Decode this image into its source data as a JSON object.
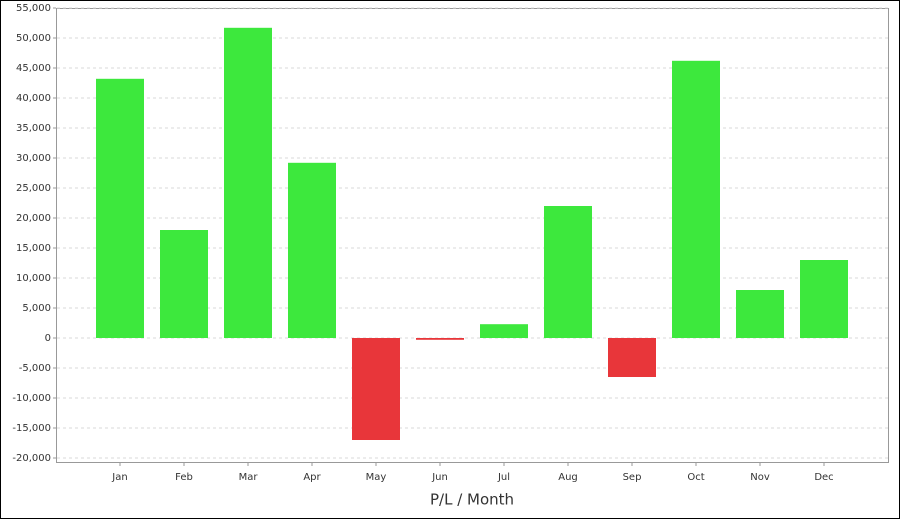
{
  "chart_data": {
    "type": "bar",
    "xlabel": "P/L / Month",
    "categories": [
      "Jan",
      "Feb",
      "Mar",
      "Apr",
      "May",
      "Jun",
      "Jul",
      "Aug",
      "Sep",
      "Oct",
      "Nov",
      "Dec"
    ],
    "values": [
      43200,
      18000,
      51700,
      29200,
      -17000,
      -300,
      2300,
      22000,
      -6500,
      46200,
      8000,
      13000
    ],
    "positive_color": "#3de83d",
    "negative_color": "#e8363a",
    "ylim": [
      -20000,
      55000
    ],
    "yticks": [
      {
        "value": -20000,
        "label": "-20,000"
      },
      {
        "value": -15000,
        "label": "-15,000"
      },
      {
        "value": -10000,
        "label": "-10,000"
      },
      {
        "value": -5000,
        "label": "-5,000"
      },
      0,
      {
        "value": 5000,
        "label": "5,000"
      },
      {
        "value": 10000,
        "label": "10,000"
      },
      {
        "value": 15000,
        "label": "15,000"
      },
      {
        "value": 20000,
        "label": "20,000"
      },
      {
        "value": 25000,
        "label": "25,000"
      },
      {
        "value": 30000,
        "label": "30,000"
      },
      {
        "value": 35000,
        "label": "35,000"
      },
      {
        "value": 40000,
        "label": "40,000"
      },
      {
        "value": 45000,
        "label": "45,000"
      },
      {
        "value": 50000,
        "label": "50,000"
      },
      {
        "value": 55000,
        "label": "55,000"
      }
    ],
    "grid": true
  }
}
